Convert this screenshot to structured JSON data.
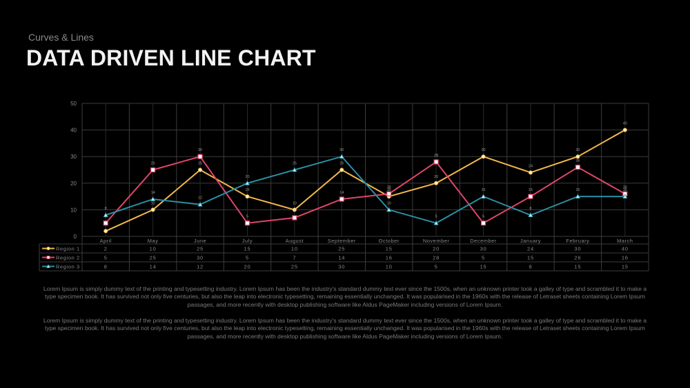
{
  "header": {
    "subtitle": "Curves & Lines",
    "title": "DATA DRIVEN LINE CHART"
  },
  "chart_data": {
    "type": "line",
    "title": "",
    "xlabel": "",
    "ylabel": "",
    "ylim": [
      0,
      50
    ],
    "yticks": [
      0,
      10,
      20,
      30,
      40,
      50
    ],
    "grid": true,
    "legend_position": "data-table-left",
    "data_labels": true,
    "categories": [
      "April",
      "May",
      "June",
      "July",
      "August",
      "September",
      "October",
      "November",
      "December",
      "January",
      "February",
      "March"
    ],
    "series": [
      {
        "name": "Region 1",
        "color": "#f5b94a",
        "marker": "circle",
        "values": [
          2,
          10,
          25,
          15,
          10,
          25,
          15,
          20,
          30,
          24,
          30,
          40
        ]
      },
      {
        "name": "Region 2",
        "color": "#e0466a",
        "marker": "square",
        "values": [
          5,
          25,
          30,
          5,
          7,
          14,
          16,
          28,
          5,
          15,
          26,
          16
        ]
      },
      {
        "name": "Region 3",
        "color": "#2a8fa3",
        "marker": "triangle",
        "values": [
          8,
          14,
          12,
          20,
          25,
          30,
          10,
          5,
          15,
          8,
          15,
          15
        ]
      }
    ]
  },
  "body": {
    "paragraphs": [
      "Lorem Ipsum is simply dummy text of the printing and typesetting industry. Lorem Ipsum has been  the industry's standard dummy text ever since the 1500s,  when  an unknown  printer took a galley of type and scrambled it to make a type specimen book. It has survived not only five centuries, but also the leap  into electronic typesetting, remaining essentially unchanged. It was popularised  in the 1960s with the release of Letraset sheets containing Lorem Ipsum passages,  and more recently with desktop publishing  software like Aldus PageMaker  including  versions of Lorem Ipsum.",
      "Lorem Ipsum is simply dummy text of the printing and typesetting industry. Lorem Ipsum has been  the industry's standard dummy text ever since the 1500s,  when  an unknown  printer took a galley of type and scrambled it to make a type specimen book. It has survived not only five centuries, but also the leap  into electronic typesetting, remaining essentially unchanged. It was popularised  in the 1960s with the release of Letraset sheets containing Lorem Ipsum passages,  and more recently with desktop publishing  software like Aldus PageMaker  including  versions of Lorem Ipsum."
    ]
  }
}
